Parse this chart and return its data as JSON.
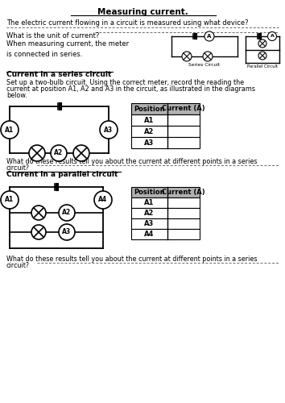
{
  "title": "Measuring current.",
  "bg_color": "#ffffff",
  "sections": {
    "intro_q1": "The electric current flowing in a circuit is measured using what device?",
    "intro_q2": "What is the unit of current?",
    "meter_text": "When measuring current, the meter\nis connected in series.",
    "series_heading": "Current in a series circuit",
    "series_para_1": "Set up a two-bulb circuit. Using the correct meter, record the reading the",
    "series_para_2": "current at position A1, A2 and A3 in the circuit, as illustrated in the diagrams",
    "series_para_3": "below.",
    "series_q1": "What do these results tell you about the current at different points in a series",
    "series_q2": "circuit?",
    "parallel_heading": "Current in a parallel circuit",
    "parallel_q1": "What do these results tell you about the current at different points in a series",
    "parallel_q2": "circuit?"
  },
  "table1": {
    "headers": [
      "Position",
      "Current (A)"
    ],
    "rows": [
      "A1",
      "A2",
      "A3"
    ]
  },
  "table2": {
    "headers": [
      "Position",
      "Current (A)"
    ],
    "rows": [
      "A1",
      "A2",
      "A3",
      "A4"
    ]
  }
}
